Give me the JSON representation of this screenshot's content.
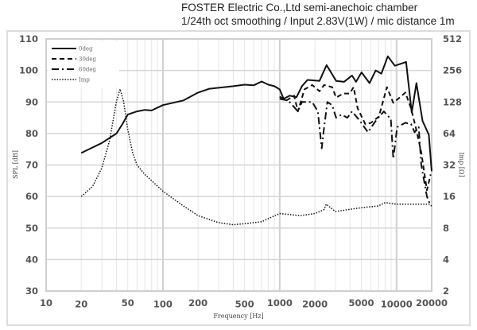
{
  "header": {
    "line1": "FOSTER Electric Co.,Ltd  semi-anechoic chamber",
    "line2": "1/24th oct smoothing / Input 2.83V(1W) / mic distance 1m"
  },
  "chart_data": {
    "type": "line",
    "title": "FOSTER Electric Co.,Ltd  semi-anechoic chamber / 1/24th oct smoothing / Input 2.83V(1W) / mic distance 1m",
    "xlabel": "Frequency [Hz]",
    "ylabel": "SPL [dB]",
    "y2label": "Imp [Ω]",
    "xscale": "log",
    "xlim": [
      10,
      20000
    ],
    "ylim": [
      30,
      110
    ],
    "y2scale": "log2",
    "y2lim": [
      2,
      512
    ],
    "xticks": [
      "10",
      "20",
      "50",
      "100",
      "200",
      "500",
      "1000",
      "2000",
      "5000",
      "10000",
      "20000"
    ],
    "yticks": [
      "30",
      "40",
      "50",
      "60",
      "70",
      "80",
      "90",
      "100",
      "110"
    ],
    "y2ticks": [
      "2",
      "4",
      "8",
      "16",
      "32",
      "64",
      "128",
      "256",
      "512"
    ],
    "grid": true,
    "legend_position": "top-left",
    "series": [
      {
        "name": "0deg",
        "axis": "left",
        "style": "solid",
        "points": [
          [
            20,
            73.8
          ],
          [
            30,
            77
          ],
          [
            40,
            80
          ],
          [
            45,
            83
          ],
          [
            50,
            86
          ],
          [
            60,
            87
          ],
          [
            70,
            87.5
          ],
          [
            80,
            87.3
          ],
          [
            100,
            89
          ],
          [
            150,
            90.5
          ],
          [
            200,
            93
          ],
          [
            250,
            94.2
          ],
          [
            300,
            94.5
          ],
          [
            400,
            95
          ],
          [
            500,
            95.5
          ],
          [
            600,
            95.3
          ],
          [
            700,
            96.5
          ],
          [
            800,
            95.5
          ],
          [
            900,
            95
          ],
          [
            1000,
            94
          ],
          [
            1080,
            91
          ],
          [
            1220,
            92
          ],
          [
            1390,
            91.5
          ],
          [
            1550,
            95
          ],
          [
            1730,
            97
          ],
          [
            2190,
            96.7
          ],
          [
            2520,
            101.7
          ],
          [
            3040,
            96.7
          ],
          [
            3550,
            96.4
          ],
          [
            4160,
            98.4
          ],
          [
            4500,
            96.4
          ],
          [
            5020,
            99.4
          ],
          [
            5870,
            96
          ],
          [
            6640,
            100
          ],
          [
            7420,
            99
          ],
          [
            8420,
            104.5
          ],
          [
            9680,
            101.5
          ],
          [
            10640,
            102
          ],
          [
            12080,
            102.7
          ],
          [
            13500,
            86.6
          ],
          [
            14800,
            96
          ],
          [
            16700,
            84
          ],
          [
            18900,
            79.6
          ],
          [
            20000,
            68
          ]
        ]
      },
      {
        "name": "30deg",
        "axis": "left",
        "style": "dashed",
        "points": [
          [
            1000,
            91.7
          ],
          [
            1130,
            90.4
          ],
          [
            1330,
            92
          ],
          [
            1430,
            87
          ],
          [
            1630,
            94
          ],
          [
            1900,
            95.4
          ],
          [
            2190,
            93.4
          ],
          [
            2400,
            95.4
          ],
          [
            2810,
            94.7
          ],
          [
            3040,
            91.4
          ],
          [
            3500,
            92.7
          ],
          [
            3970,
            92.7
          ],
          [
            4290,
            94.7
          ],
          [
            4640,
            88
          ],
          [
            5420,
            82.9
          ],
          [
            6050,
            83.4
          ],
          [
            7070,
            85.4
          ],
          [
            8280,
            94.7
          ],
          [
            9380,
            89.7
          ],
          [
            10640,
            91.4
          ],
          [
            11900,
            93
          ],
          [
            13300,
            88
          ],
          [
            14600,
            82
          ],
          [
            16300,
            74
          ],
          [
            18200,
            62
          ],
          [
            19600,
            67
          ]
        ]
      },
      {
        "name": "60deg",
        "axis": "left",
        "style": "dashdot",
        "points": [
          [
            1000,
            91
          ],
          [
            1190,
            90.4
          ],
          [
            1430,
            87
          ],
          [
            1550,
            90
          ],
          [
            1900,
            90
          ],
          [
            2120,
            87
          ],
          [
            2290,
            75.3
          ],
          [
            2400,
            82
          ],
          [
            2560,
            90
          ],
          [
            2810,
            89
          ],
          [
            3040,
            85
          ],
          [
            3390,
            86
          ],
          [
            3790,
            85
          ],
          [
            4160,
            87
          ],
          [
            4860,
            84
          ],
          [
            5690,
            80.4
          ],
          [
            6640,
            84
          ],
          [
            7790,
            87
          ],
          [
            8930,
            84.6
          ],
          [
            9380,
            72
          ],
          [
            10130,
            82
          ],
          [
            11900,
            83.4
          ],
          [
            13300,
            83
          ],
          [
            14300,
            80.4
          ],
          [
            15500,
            82
          ],
          [
            16300,
            70
          ],
          [
            18200,
            60
          ],
          [
            19600,
            57
          ]
        ]
      },
      {
        "name": "Imp",
        "axis": "right",
        "style": "dotted",
        "points": [
          [
            20,
            16
          ],
          [
            25,
            20
          ],
          [
            30,
            30
          ],
          [
            35,
            55
          ],
          [
            40,
            130
          ],
          [
            43,
            170
          ],
          [
            46,
            130
          ],
          [
            50,
            70
          ],
          [
            55,
            42
          ],
          [
            60,
            32
          ],
          [
            70,
            26
          ],
          [
            100,
            18
          ],
          [
            150,
            13
          ],
          [
            200,
            10.5
          ],
          [
            300,
            9
          ],
          [
            400,
            8.6
          ],
          [
            500,
            8.8
          ],
          [
            700,
            9.2
          ],
          [
            1000,
            11
          ],
          [
            1500,
            10.5
          ],
          [
            2000,
            11
          ],
          [
            2400,
            12
          ],
          [
            2500,
            13.5
          ],
          [
            3000,
            11.5
          ],
          [
            5000,
            12.5
          ],
          [
            7000,
            13
          ],
          [
            8000,
            14
          ],
          [
            10000,
            13.5
          ],
          [
            15000,
            13.5
          ],
          [
            19000,
            13.5
          ],
          [
            20000,
            13
          ]
        ]
      }
    ]
  }
}
